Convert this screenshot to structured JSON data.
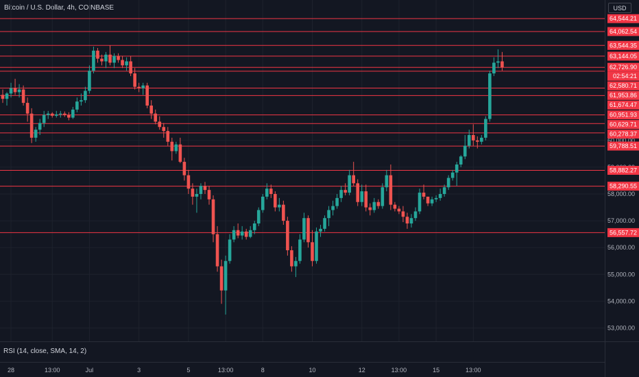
{
  "header": {
    "title": "Bitcoin / U.S. Dollar, 4h, COINBASE",
    "currency_button": "USD"
  },
  "indicator": {
    "label": "RSI (14, close, SMA, 14, 2)"
  },
  "colors": {
    "background": "#131722",
    "up": "#26a69a",
    "down": "#ef5350",
    "level_line": "#f23645",
    "grid": "#1e222d"
  },
  "chart_data": {
    "type": "candlestick",
    "title": "Bitcoin / U.S. Dollar, 4h, COINBASE",
    "xlabel": "",
    "ylabel": "",
    "ylim": [
      52500,
      64600
    ],
    "y_ticks": [
      53000,
      54000,
      55000,
      56000,
      57000,
      58000,
      59000,
      60000
    ],
    "y_tick_labels": [
      "53,000.00",
      "54,000.00",
      "55,000.00",
      "56,000.00",
      "57,000.00",
      "58,000.00",
      "59,000.00",
      "60,000.00"
    ],
    "x_ticks": [
      {
        "label": "28",
        "bar": 2
      },
      {
        "label": "13:00",
        "bar": 12
      },
      {
        "label": "Jul",
        "bar": 21
      },
      {
        "label": "3",
        "bar": 33
      },
      {
        "label": "5",
        "bar": 45
      },
      {
        "label": "13:00",
        "bar": 54
      },
      {
        "label": "8",
        "bar": 63
      },
      {
        "label": "10",
        "bar": 75
      },
      {
        "label": "12",
        "bar": 87
      },
      {
        "label": "13:00",
        "bar": 96
      },
      {
        "label": "15",
        "bar": 105
      },
      {
        "label": "13:00",
        "bar": 114
      }
    ],
    "levels": [
      64544.21,
      64062.54,
      63544.35,
      63144.05,
      62726.9,
      62580.71,
      61953.86,
      61674.47,
      60951.93,
      60629.71,
      60278.37,
      59788.51,
      58882.27,
      58290.55,
      56557.72
    ],
    "level_labels": [
      "64,544.21",
      "64,062.54",
      "63,544.35",
      "63,144.05",
      "62,726.90",
      "62,580.71",
      "61,953.86",
      "61,674.47",
      "60,951.93",
      "60,629.71",
      "60,278.37",
      "59,788.51",
      "58,882.27",
      "58,290.55",
      "56,557.72"
    ],
    "last_price": 62726.9,
    "countdown": "02:54:21",
    "candles": [
      {
        "o": 61700,
        "h": 61900,
        "l": 61400,
        "c": 61550
      },
      {
        "o": 61550,
        "h": 61800,
        "l": 61300,
        "c": 61750
      },
      {
        "o": 61750,
        "h": 62150,
        "l": 61600,
        "c": 61950
      },
      {
        "o": 61950,
        "h": 62300,
        "l": 61700,
        "c": 61800
      },
      {
        "o": 61800,
        "h": 62100,
        "l": 61600,
        "c": 61900
      },
      {
        "o": 61900,
        "h": 62050,
        "l": 61300,
        "c": 61400
      },
      {
        "o": 61400,
        "h": 61600,
        "l": 60700,
        "c": 61000
      },
      {
        "o": 61000,
        "h": 61200,
        "l": 59900,
        "c": 60100
      },
      {
        "o": 60100,
        "h": 60500,
        "l": 59950,
        "c": 60400
      },
      {
        "o": 60400,
        "h": 60800,
        "l": 60200,
        "c": 60650
      },
      {
        "o": 60650,
        "h": 61100,
        "l": 60500,
        "c": 60950
      },
      {
        "o": 60950,
        "h": 61100,
        "l": 60800,
        "c": 61000
      },
      {
        "o": 61000,
        "h": 61050,
        "l": 60850,
        "c": 60920
      },
      {
        "o": 60920,
        "h": 61100,
        "l": 60850,
        "c": 60970
      },
      {
        "o": 60970,
        "h": 61100,
        "l": 60850,
        "c": 61000
      },
      {
        "o": 61000,
        "h": 61080,
        "l": 60880,
        "c": 60950
      },
      {
        "o": 60950,
        "h": 61050,
        "l": 60750,
        "c": 60850
      },
      {
        "o": 60850,
        "h": 61250,
        "l": 60800,
        "c": 61150
      },
      {
        "o": 61150,
        "h": 61600,
        "l": 61050,
        "c": 61450
      },
      {
        "o": 61450,
        "h": 61750,
        "l": 61300,
        "c": 61500
      },
      {
        "o": 61500,
        "h": 62000,
        "l": 61400,
        "c": 61850
      },
      {
        "o": 61850,
        "h": 62800,
        "l": 61750,
        "c": 62600
      },
      {
        "o": 62600,
        "h": 63500,
        "l": 62500,
        "c": 63350
      },
      {
        "o": 63350,
        "h": 63450,
        "l": 62900,
        "c": 63050
      },
      {
        "o": 63050,
        "h": 63200,
        "l": 62800,
        "c": 62950
      },
      {
        "o": 62950,
        "h": 63300,
        "l": 62700,
        "c": 63200
      },
      {
        "o": 63200,
        "h": 63550,
        "l": 62800,
        "c": 62900
      },
      {
        "o": 62900,
        "h": 63250,
        "l": 62700,
        "c": 63150
      },
      {
        "o": 63150,
        "h": 63250,
        "l": 62900,
        "c": 63000
      },
      {
        "o": 63000,
        "h": 63150,
        "l": 62700,
        "c": 62800
      },
      {
        "o": 62800,
        "h": 63100,
        "l": 62600,
        "c": 62950
      },
      {
        "o": 62950,
        "h": 63150,
        "l": 62400,
        "c": 62500
      },
      {
        "o": 62500,
        "h": 62700,
        "l": 61900,
        "c": 62000
      },
      {
        "o": 62000,
        "h": 62150,
        "l": 61800,
        "c": 61950
      },
      {
        "o": 61950,
        "h": 62150,
        "l": 61700,
        "c": 62050
      },
      {
        "o": 62050,
        "h": 62150,
        "l": 61200,
        "c": 61300
      },
      {
        "o": 61300,
        "h": 61500,
        "l": 60800,
        "c": 61000
      },
      {
        "o": 61000,
        "h": 61150,
        "l": 60600,
        "c": 60700
      },
      {
        "o": 60700,
        "h": 60900,
        "l": 60400,
        "c": 60500
      },
      {
        "o": 60500,
        "h": 60650,
        "l": 60100,
        "c": 60350
      },
      {
        "o": 60350,
        "h": 60500,
        "l": 59800,
        "c": 59950
      },
      {
        "o": 59950,
        "h": 60100,
        "l": 59250,
        "c": 59600
      },
      {
        "o": 59600,
        "h": 59950,
        "l": 59500,
        "c": 59850
      },
      {
        "o": 59850,
        "h": 60100,
        "l": 59150,
        "c": 59200
      },
      {
        "o": 59200,
        "h": 59350,
        "l": 58500,
        "c": 58700
      },
      {
        "o": 58700,
        "h": 58900,
        "l": 58000,
        "c": 58200
      },
      {
        "o": 58200,
        "h": 58400,
        "l": 57600,
        "c": 57900
      },
      {
        "o": 57900,
        "h": 58200,
        "l": 57300,
        "c": 58000
      },
      {
        "o": 58000,
        "h": 58400,
        "l": 57800,
        "c": 58300
      },
      {
        "o": 58300,
        "h": 58450,
        "l": 58000,
        "c": 58150
      },
      {
        "o": 58150,
        "h": 58300,
        "l": 57600,
        "c": 57800
      },
      {
        "o": 57800,
        "h": 57950,
        "l": 56200,
        "c": 56500
      },
      {
        "o": 56500,
        "h": 56800,
        "l": 55100,
        "c": 55300
      },
      {
        "o": 55300,
        "h": 55550,
        "l": 53900,
        "c": 54400
      },
      {
        "o": 54400,
        "h": 55700,
        "l": 53500,
        "c": 55500
      },
      {
        "o": 55500,
        "h": 56500,
        "l": 55400,
        "c": 56300
      },
      {
        "o": 56300,
        "h": 56800,
        "l": 56200,
        "c": 56650
      },
      {
        "o": 56650,
        "h": 56900,
        "l": 56350,
        "c": 56450
      },
      {
        "o": 56450,
        "h": 56800,
        "l": 56300,
        "c": 56600
      },
      {
        "o": 56600,
        "h": 56700,
        "l": 56300,
        "c": 56400
      },
      {
        "o": 56400,
        "h": 56800,
        "l": 56350,
        "c": 56650
      },
      {
        "o": 56650,
        "h": 57000,
        "l": 56500,
        "c": 56900
      },
      {
        "o": 56900,
        "h": 57500,
        "l": 56800,
        "c": 57400
      },
      {
        "o": 57400,
        "h": 58000,
        "l": 57300,
        "c": 57900
      },
      {
        "o": 57900,
        "h": 58400,
        "l": 57800,
        "c": 58200
      },
      {
        "o": 58200,
        "h": 58350,
        "l": 57850,
        "c": 58000
      },
      {
        "o": 58000,
        "h": 58100,
        "l": 57350,
        "c": 57500
      },
      {
        "o": 57500,
        "h": 57850,
        "l": 57350,
        "c": 57600
      },
      {
        "o": 57600,
        "h": 57750,
        "l": 56850,
        "c": 57000
      },
      {
        "o": 57000,
        "h": 57150,
        "l": 55700,
        "c": 55900
      },
      {
        "o": 55900,
        "h": 56050,
        "l": 55100,
        "c": 55300
      },
      {
        "o": 55300,
        "h": 55650,
        "l": 54900,
        "c": 55500
      },
      {
        "o": 55500,
        "h": 56500,
        "l": 55400,
        "c": 56300
      },
      {
        "o": 56300,
        "h": 57300,
        "l": 56200,
        "c": 57100
      },
      {
        "o": 57100,
        "h": 57200,
        "l": 56000,
        "c": 56200
      },
      {
        "o": 56200,
        "h": 56650,
        "l": 55300,
        "c": 55500
      },
      {
        "o": 55500,
        "h": 56750,
        "l": 55400,
        "c": 56600
      },
      {
        "o": 56600,
        "h": 56850,
        "l": 56400,
        "c": 56700
      },
      {
        "o": 56700,
        "h": 57200,
        "l": 56600,
        "c": 57100
      },
      {
        "o": 57100,
        "h": 57550,
        "l": 56800,
        "c": 57400
      },
      {
        "o": 57400,
        "h": 57750,
        "l": 57200,
        "c": 57550
      },
      {
        "o": 57550,
        "h": 58000,
        "l": 57450,
        "c": 57850
      },
      {
        "o": 57850,
        "h": 58300,
        "l": 57700,
        "c": 58150
      },
      {
        "o": 58150,
        "h": 58400,
        "l": 57950,
        "c": 58050
      },
      {
        "o": 58050,
        "h": 58900,
        "l": 57950,
        "c": 58700
      },
      {
        "o": 58700,
        "h": 59200,
        "l": 58300,
        "c": 58400
      },
      {
        "o": 58400,
        "h": 58550,
        "l": 57550,
        "c": 57700
      },
      {
        "o": 57700,
        "h": 58350,
        "l": 57550,
        "c": 58100
      },
      {
        "o": 58100,
        "h": 58350,
        "l": 57350,
        "c": 57500
      },
      {
        "o": 57500,
        "h": 57650,
        "l": 57200,
        "c": 57400
      },
      {
        "o": 57400,
        "h": 57850,
        "l": 57300,
        "c": 57700
      },
      {
        "o": 57700,
        "h": 57800,
        "l": 57450,
        "c": 57550
      },
      {
        "o": 57550,
        "h": 58400,
        "l": 57450,
        "c": 58250
      },
      {
        "o": 58250,
        "h": 58900,
        "l": 58100,
        "c": 58700
      },
      {
        "o": 58700,
        "h": 59100,
        "l": 57400,
        "c": 57600
      },
      {
        "o": 57600,
        "h": 57700,
        "l": 57350,
        "c": 57450
      },
      {
        "o": 57450,
        "h": 57550,
        "l": 57250,
        "c": 57350
      },
      {
        "o": 57350,
        "h": 57550,
        "l": 56950,
        "c": 57150
      },
      {
        "o": 57150,
        "h": 57300,
        "l": 56700,
        "c": 56900
      },
      {
        "o": 56900,
        "h": 57250,
        "l": 56750,
        "c": 57100
      },
      {
        "o": 57100,
        "h": 57500,
        "l": 57000,
        "c": 57350
      },
      {
        "o": 57350,
        "h": 58200,
        "l": 57250,
        "c": 58050
      },
      {
        "o": 58050,
        "h": 58350,
        "l": 57800,
        "c": 57900
      },
      {
        "o": 57900,
        "h": 57900,
        "l": 57550,
        "c": 57650
      },
      {
        "o": 57650,
        "h": 57900,
        "l": 57550,
        "c": 57800
      },
      {
        "o": 57800,
        "h": 57950,
        "l": 57700,
        "c": 57850
      },
      {
        "o": 57850,
        "h": 58200,
        "l": 57750,
        "c": 58000
      },
      {
        "o": 58000,
        "h": 58350,
        "l": 57900,
        "c": 58250
      },
      {
        "o": 58250,
        "h": 58700,
        "l": 58150,
        "c": 58600
      },
      {
        "o": 58600,
        "h": 58900,
        "l": 58500,
        "c": 58800
      },
      {
        "o": 58800,
        "h": 59200,
        "l": 58300,
        "c": 59100
      },
      {
        "o": 59100,
        "h": 59450,
        "l": 59000,
        "c": 59400
      },
      {
        "o": 59400,
        "h": 60200,
        "l": 59300,
        "c": 59800
      },
      {
        "o": 59800,
        "h": 60400,
        "l": 59700,
        "c": 60200
      },
      {
        "o": 60200,
        "h": 60600,
        "l": 59800,
        "c": 60000
      },
      {
        "o": 60000,
        "h": 60150,
        "l": 59700,
        "c": 59950
      },
      {
        "o": 59950,
        "h": 60200,
        "l": 59850,
        "c": 60100
      },
      {
        "o": 60100,
        "h": 60900,
        "l": 60000,
        "c": 60800
      },
      {
        "o": 60800,
        "h": 62600,
        "l": 60700,
        "c": 62500
      },
      {
        "o": 62500,
        "h": 63100,
        "l": 62400,
        "c": 62900
      },
      {
        "o": 62900,
        "h": 63400,
        "l": 62700,
        "c": 62950
      },
      {
        "o": 62950,
        "h": 63300,
        "l": 62600,
        "c": 62727
      }
    ]
  }
}
